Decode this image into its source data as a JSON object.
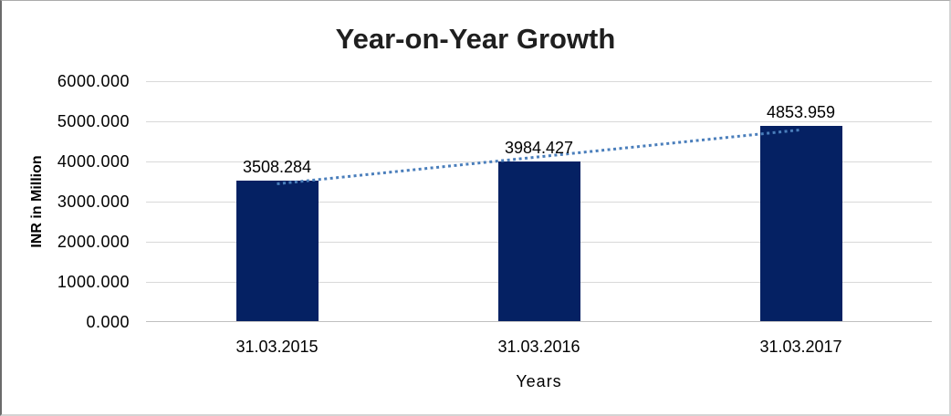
{
  "chart_data": {
    "type": "bar",
    "title": "Year-on-Year Growth",
    "xlabel": "Years",
    "ylabel": "INR in Million",
    "categories": [
      "31.03.2015",
      "31.03.2016",
      "31.03.2017"
    ],
    "values": [
      3508.284,
      3984.427,
      4853.959
    ],
    "data_labels": [
      "3508.284",
      "3984.427",
      "4853.959"
    ],
    "yticks": [
      "0.000",
      "1000.000",
      "2000.000",
      "3000.000",
      "4000.000",
      "5000.000",
      "6000.000"
    ],
    "ytick_values": [
      0,
      1000,
      2000,
      3000,
      4000,
      5000,
      6000
    ],
    "ylim": [
      0,
      6000
    ],
    "grid": true,
    "legend": "none",
    "bar_color": "#052163",
    "trendline": {
      "type": "linear",
      "style": "dotted",
      "color": "#4a7ebb"
    }
  },
  "colors": {
    "grid": "#d9d9d9",
    "axis_line": "#c0c0c0",
    "title_text": "#1f1f1f",
    "label_text": "#000000",
    "background": "#ffffff"
  }
}
